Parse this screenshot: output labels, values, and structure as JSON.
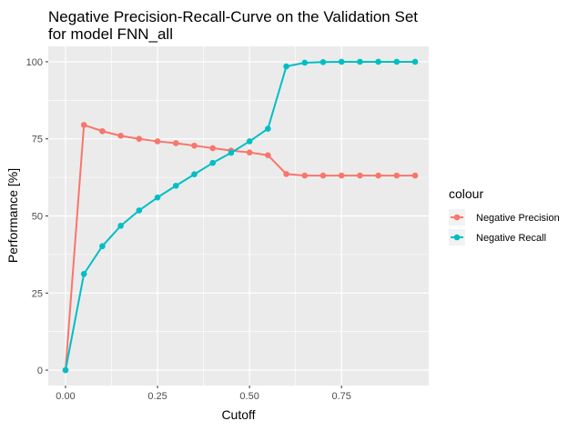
{
  "chart_data": {
    "type": "line",
    "title": "Negative Precision-Recall-Curve on the Validation Set",
    "subtitle": "for model FNN_all",
    "xlabel": "Cutoff",
    "ylabel": "Performance [%]",
    "xlim": [
      -0.047,
      0.987
    ],
    "ylim": [
      -5,
      105
    ],
    "x_ticks": [
      0.0,
      0.25,
      0.5,
      0.75
    ],
    "x_tick_labels": [
      "0.00",
      "0.25",
      "0.50",
      "0.75"
    ],
    "y_ticks": [
      0,
      25,
      50,
      75,
      100
    ],
    "y_tick_labels": [
      "0",
      "25",
      "50",
      "75",
      "100"
    ],
    "grid": true,
    "legend": {
      "title": "colour",
      "placement": "right"
    },
    "x": [
      0.0,
      0.05,
      0.1,
      0.15,
      0.2,
      0.25,
      0.3,
      0.35,
      0.4,
      0.45,
      0.5,
      0.55,
      0.6,
      0.65,
      0.7,
      0.75,
      0.8,
      0.85,
      0.9,
      0.95
    ],
    "series": [
      {
        "name": "Negative Precision",
        "color": "#F8766D",
        "values": [
          0,
          79.5,
          77.5,
          76.0,
          75.0,
          74.2,
          73.6,
          72.8,
          72.0,
          71.2,
          70.6,
          69.7,
          63.6,
          63.1,
          63.1,
          63.1,
          63.1,
          63.1,
          63.1,
          63.1
        ]
      },
      {
        "name": "Negative Recall",
        "color": "#00BFC4",
        "values": [
          0,
          31.2,
          40.2,
          46.8,
          51.8,
          56.0,
          59.8,
          63.5,
          67.2,
          70.5,
          74.2,
          78.3,
          98.5,
          99.7,
          99.9,
          100,
          100,
          100,
          100,
          100
        ]
      }
    ]
  }
}
